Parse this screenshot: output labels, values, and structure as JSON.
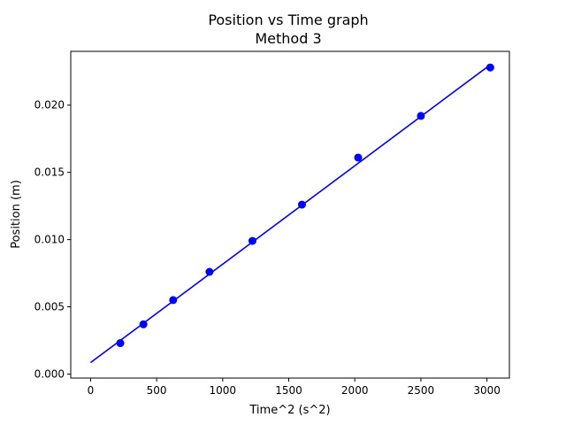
{
  "chart_data": {
    "type": "scatter",
    "title": "Position vs Time graph",
    "subtitle": "Method 3",
    "xlabel": "Time^2 (s^2)",
    "ylabel": "Position (m)",
    "xlim": [
      -150,
      3170
    ],
    "ylim": [
      -0.0003,
      0.024
    ],
    "xticks": [
      0,
      500,
      1000,
      1500,
      2000,
      2500,
      3000
    ],
    "xtick_labels": [
      "0",
      "500",
      "1000",
      "1500",
      "2000",
      "2500",
      "3000"
    ],
    "yticks": [
      0.0,
      0.005,
      0.01,
      0.015,
      0.02
    ],
    "ytick_labels": [
      "0.000",
      "0.005",
      "0.010",
      "0.015",
      "0.020"
    ],
    "grid": false,
    "legend": "none",
    "colors": {
      "points": "#0000ff",
      "fit_line": "#0000ff",
      "axes": "#000000"
    },
    "series": [
      {
        "type": "scatter",
        "x": [
          225,
          400,
          625,
          900,
          1225,
          1600,
          2025,
          2500,
          3025
        ],
        "y": [
          0.0023,
          0.0037,
          0.0055,
          0.0076,
          0.0099,
          0.0126,
          0.0161,
          0.0192,
          0.0228
        ]
      },
      {
        "type": "line",
        "x": [
          0,
          3025
        ],
        "y": [
          0.00085,
          0.023
        ]
      }
    ]
  }
}
